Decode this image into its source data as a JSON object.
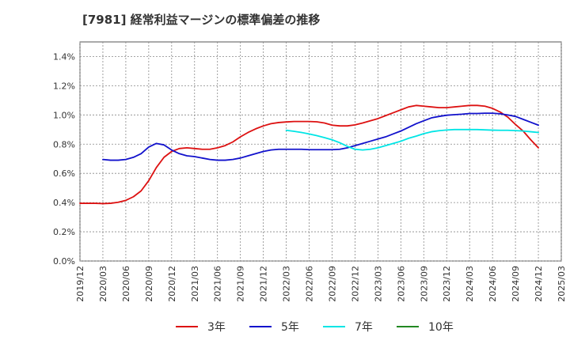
{
  "chart_data": {
    "type": "line",
    "title": "[7981]  経常利益マージンの標準偏差の推移",
    "x_ticks": [
      "2019/12",
      "2020/03",
      "2020/06",
      "2020/09",
      "2020/12",
      "2021/03",
      "2021/06",
      "2021/09",
      "2021/12",
      "2022/03",
      "2022/06",
      "2022/09",
      "2022/12",
      "2023/03",
      "2023/06",
      "2023/09",
      "2023/12",
      "2024/03",
      "2024/06",
      "2024/09",
      "2024/12",
      "2025/03"
    ],
    "y_ticks": [
      "0.0%",
      "0.2%",
      "0.4%",
      "0.6%",
      "0.8%",
      "1.0%",
      "1.2%",
      "1.4%"
    ],
    "ylim": [
      0,
      1.5
    ],
    "y_unit": "%",
    "grid": true,
    "legend_position": "bottom",
    "series": [
      {
        "name": "3年",
        "color": "#dd1111",
        "x": [
          "2019/12",
          "2020/01",
          "2020/02",
          "2020/03",
          "2020/04",
          "2020/05",
          "2020/06",
          "2020/07",
          "2020/08",
          "2020/09",
          "2020/10",
          "2020/11",
          "2020/12",
          "2021/01",
          "2021/02",
          "2021/03",
          "2021/04",
          "2021/05",
          "2021/06",
          "2021/07",
          "2021/08",
          "2021/09",
          "2021/10",
          "2021/11",
          "2021/12",
          "2022/01",
          "2022/02",
          "2022/03",
          "2022/04",
          "2022/05",
          "2022/06",
          "2022/07",
          "2022/08",
          "2022/09",
          "2022/10",
          "2022/11",
          "2022/12",
          "2023/01",
          "2023/02",
          "2023/03",
          "2023/04",
          "2023/05",
          "2023/06",
          "2023/07",
          "2023/08",
          "2023/09",
          "2023/10",
          "2023/11",
          "2023/12",
          "2024/01",
          "2024/02",
          "2024/03",
          "2024/04",
          "2024/05",
          "2024/06",
          "2024/07",
          "2024/08",
          "2024/09",
          "2024/10",
          "2024/11",
          "2024/12"
        ],
        "values": [
          0.395,
          0.395,
          0.395,
          0.393,
          0.395,
          0.402,
          0.415,
          0.44,
          0.48,
          0.55,
          0.64,
          0.71,
          0.75,
          0.77,
          0.775,
          0.77,
          0.765,
          0.765,
          0.775,
          0.79,
          0.815,
          0.85,
          0.88,
          0.905,
          0.925,
          0.94,
          0.948,
          0.952,
          0.955,
          0.955,
          0.955,
          0.953,
          0.945,
          0.93,
          0.925,
          0.925,
          0.932,
          0.945,
          0.96,
          0.975,
          0.995,
          1.015,
          1.035,
          1.055,
          1.065,
          1.06,
          1.055,
          1.05,
          1.05,
          1.055,
          1.06,
          1.065,
          1.065,
          1.06,
          1.045,
          1.02,
          0.985,
          0.935,
          0.89,
          0.83,
          0.775
        ]
      },
      {
        "name": "5年",
        "color": "#1111cc",
        "x": [
          "2020/03",
          "2020/04",
          "2020/05",
          "2020/06",
          "2020/07",
          "2020/08",
          "2020/09",
          "2020/10",
          "2020/11",
          "2020/12",
          "2021/01",
          "2021/02",
          "2021/03",
          "2021/04",
          "2021/05",
          "2021/06",
          "2021/07",
          "2021/08",
          "2021/09",
          "2021/10",
          "2021/11",
          "2021/12",
          "2022/01",
          "2022/02",
          "2022/03",
          "2022/04",
          "2022/05",
          "2022/06",
          "2022/07",
          "2022/08",
          "2022/09",
          "2022/10",
          "2022/11",
          "2022/12",
          "2023/01",
          "2023/02",
          "2023/03",
          "2023/04",
          "2023/05",
          "2023/06",
          "2023/07",
          "2023/08",
          "2023/09",
          "2023/10",
          "2023/11",
          "2023/12",
          "2024/01",
          "2024/02",
          "2024/03",
          "2024/04",
          "2024/05",
          "2024/06",
          "2024/07",
          "2024/08",
          "2024/09",
          "2024/10",
          "2024/11",
          "2024/12"
        ],
        "values": [
          0.695,
          0.69,
          0.69,
          0.695,
          0.71,
          0.735,
          0.78,
          0.805,
          0.795,
          0.76,
          0.735,
          0.72,
          0.715,
          0.705,
          0.695,
          0.69,
          0.69,
          0.695,
          0.705,
          0.72,
          0.735,
          0.75,
          0.76,
          0.765,
          0.765,
          0.765,
          0.765,
          0.762,
          0.762,
          0.762,
          0.762,
          0.765,
          0.775,
          0.79,
          0.805,
          0.82,
          0.835,
          0.85,
          0.87,
          0.89,
          0.915,
          0.94,
          0.96,
          0.98,
          0.99,
          0.998,
          1.002,
          1.005,
          1.01,
          1.01,
          1.012,
          1.012,
          1.008,
          1.0,
          0.99,
          0.97,
          0.95,
          0.93
        ]
      },
      {
        "name": "7年",
        "color": "#00e5e5",
        "x": [
          "2022/03",
          "2022/04",
          "2022/05",
          "2022/06",
          "2022/07",
          "2022/08",
          "2022/09",
          "2022/10",
          "2022/11",
          "2022/12",
          "2023/01",
          "2023/02",
          "2023/03",
          "2023/04",
          "2023/05",
          "2023/06",
          "2023/07",
          "2023/08",
          "2023/09",
          "2023/10",
          "2023/11",
          "2023/12",
          "2024/01",
          "2024/02",
          "2024/03",
          "2024/04",
          "2024/05",
          "2024/06",
          "2024/07",
          "2024/08",
          "2024/09",
          "2024/10",
          "2024/11",
          "2024/12"
        ],
        "values": [
          0.895,
          0.888,
          0.88,
          0.87,
          0.858,
          0.845,
          0.83,
          0.81,
          0.785,
          0.765,
          0.76,
          0.765,
          0.775,
          0.79,
          0.805,
          0.82,
          0.84,
          0.855,
          0.872,
          0.885,
          0.892,
          0.897,
          0.9,
          0.9,
          0.9,
          0.9,
          0.898,
          0.896,
          0.895,
          0.895,
          0.893,
          0.89,
          0.885,
          0.88
        ]
      },
      {
        "name": "10年",
        "color": "#228822",
        "x": [],
        "values": []
      }
    ]
  }
}
